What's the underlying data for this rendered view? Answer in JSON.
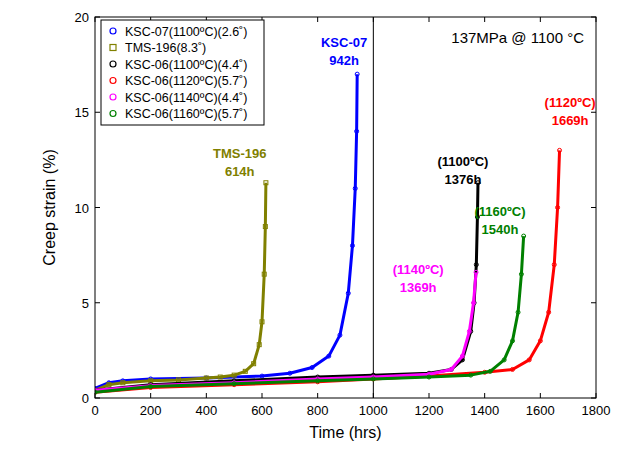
{
  "chart_data": {
    "type": "line",
    "title": "137MPa @ 1100 °C",
    "x_label": "Time (hrs)",
    "y_label": "Creep strain (%)",
    "xlim": [
      0,
      1800
    ],
    "ylim": [
      0,
      20
    ],
    "xticks": [
      0,
      200,
      400,
      600,
      800,
      1000,
      1200,
      1400,
      1600,
      1800
    ],
    "yticks": [
      0,
      5,
      10,
      15,
      20
    ],
    "grid": false,
    "legend": "upper left",
    "series": [
      {
        "name": "KSC-07(1100ºC)(2.6˚)",
        "color": "#0000ff",
        "marker": "circle",
        "x": [
          0,
          50,
          100,
          200,
          400,
          600,
          700,
          780,
          840,
          880,
          910,
          925,
          935,
          940,
          942
        ],
        "values": [
          0.5,
          0.8,
          0.9,
          1.0,
          1.05,
          1.15,
          1.3,
          1.6,
          2.2,
          3.3,
          5.5,
          8,
          11,
          14,
          17
        ]
      },
      {
        "name": "TMS-196(8.3˚)",
        "color": "#808000",
        "marker": "square",
        "x": [
          0,
          50,
          100,
          200,
          300,
          400,
          450,
          500,
          540,
          570,
          590,
          600,
          608,
          612,
          614
        ],
        "values": [
          0.4,
          0.7,
          0.8,
          0.9,
          0.95,
          1.05,
          1.1,
          1.2,
          1.4,
          1.8,
          2.8,
          4,
          6.5,
          9,
          11.3
        ]
      },
      {
        "name": "KSC-06(1100ºC)(4.4˚)",
        "color": "#000000",
        "marker": "circle",
        "x": [
          0,
          200,
          500,
          800,
          1000,
          1200,
          1280,
          1320,
          1350,
          1362,
          1370,
          1374,
          1376
        ],
        "values": [
          0.4,
          0.7,
          0.9,
          1.1,
          1.2,
          1.3,
          1.5,
          2,
          3.5,
          5,
          7,
          9.5,
          11.3
        ]
      },
      {
        "name": "KSC-06(1120ºC)(5.7˚)",
        "color": "#ff0000",
        "marker": "circle",
        "x": [
          0,
          200,
          500,
          800,
          1000,
          1200,
          1400,
          1500,
          1560,
          1600,
          1630,
          1650,
          1662,
          1669
        ],
        "values": [
          0.3,
          0.55,
          0.7,
          0.85,
          1.0,
          1.15,
          1.35,
          1.5,
          2,
          3,
          4.5,
          7,
          10,
          13
        ]
      },
      {
        "name": "KSC-06(1140ºC)(4.4˚)",
        "color": "#ff00ff",
        "marker": "circle",
        "x": [
          0,
          200,
          500,
          800,
          1000,
          1200,
          1280,
          1320,
          1345,
          1360,
          1369
        ],
        "values": [
          0.4,
          0.65,
          0.8,
          1.0,
          1.1,
          1.25,
          1.5,
          2.2,
          3.5,
          5,
          6.6
        ]
      },
      {
        "name": "KSC-06(1160ºC)(5.7˚)",
        "color": "#008000",
        "marker": "circle",
        "x": [
          0,
          200,
          500,
          800,
          1000,
          1200,
          1350,
          1420,
          1470,
          1500,
          1520,
          1532,
          1540
        ],
        "values": [
          0.3,
          0.6,
          0.75,
          0.9,
          1.0,
          1.1,
          1.2,
          1.4,
          2,
          3,
          4.5,
          6.5,
          8.5
        ]
      }
    ],
    "reference_lines": [
      {
        "x": 1000
      }
    ],
    "annotations": [
      {
        "lines": [
          "TMS-196",
          "614h"
        ],
        "x": 520,
        "y": 12.6,
        "color": "#808000"
      },
      {
        "lines": [
          "KSC-07",
          "942h"
        ],
        "x": 895,
        "y": 18.4,
        "color": "#0000ff"
      },
      {
        "lines": [
          "(1100ºC)",
          "1376h"
        ],
        "x": 1322,
        "y": 12.2,
        "color": "#000000"
      },
      {
        "lines": [
          "(1120ºC)",
          "1669h"
        ],
        "x": 1707,
        "y": 15.3,
        "color": "#ff0000"
      },
      {
        "lines": [
          "(1140ºC)",
          "1369h"
        ],
        "x": 1161,
        "y": 6.5,
        "color": "#ff00ff"
      },
      {
        "lines": [
          "(1160ºC)",
          "1540h"
        ],
        "x": 1455,
        "y": 9.55,
        "color": "#008000"
      }
    ]
  }
}
